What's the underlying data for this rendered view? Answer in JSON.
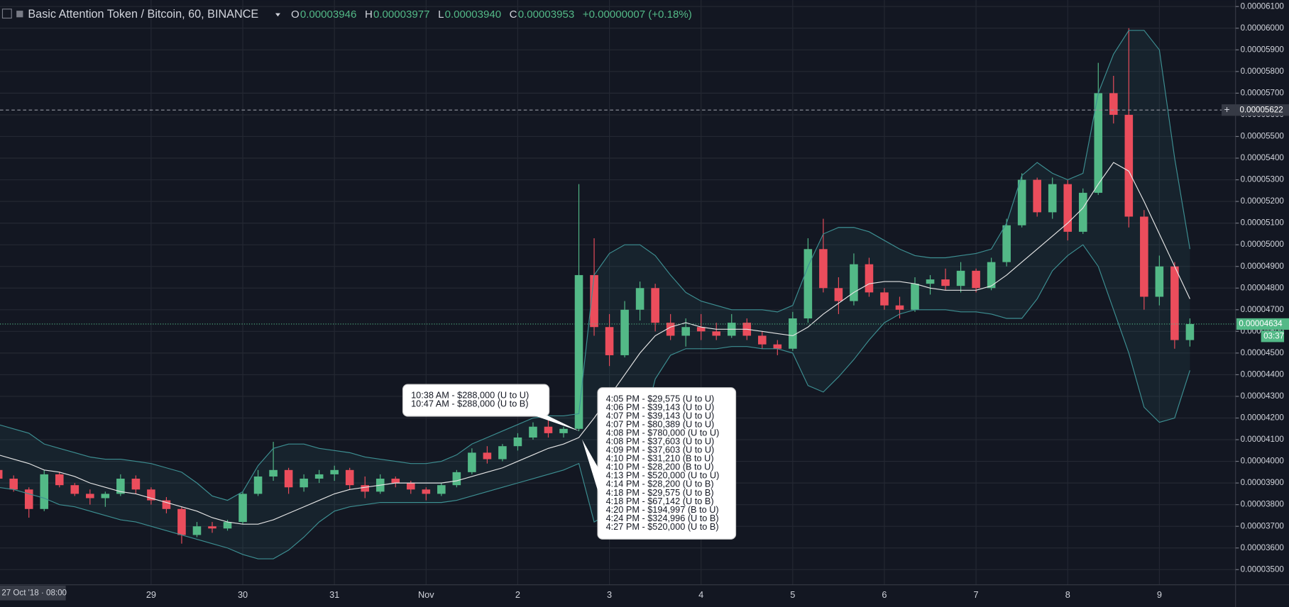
{
  "chart_data": {
    "type": "candlestick",
    "title": "Basic Attention Token / Bitcoin, 60, BINANCE",
    "ohlc_legend": [
      {
        "label": "O",
        "value": "0.00003946"
      },
      {
        "label": "H",
        "value": "0.00003977"
      },
      {
        "label": "L",
        "value": "0.00003940"
      },
      {
        "label": "C",
        "value": "0.00003953"
      }
    ],
    "change": "+0.00000007 (+0.18%)",
    "categories": [
      "27 Oct '18 · 08:00",
      null,
      null,
      null,
      null,
      null,
      null,
      null,
      null,
      null,
      "29",
      null,
      null,
      null,
      null,
      null,
      "30",
      null,
      null,
      null,
      null,
      null,
      "31",
      null,
      null,
      null,
      null,
      null,
      "Nov",
      null,
      null,
      null,
      null,
      null,
      "2",
      null,
      null,
      null,
      null,
      null,
      "3",
      null,
      null,
      null,
      null,
      null,
      "4",
      null,
      null,
      null,
      null,
      null,
      "5",
      null,
      null,
      null,
      null,
      null,
      "6",
      null,
      null,
      null,
      null,
      null,
      "7",
      null,
      null,
      null,
      null,
      null,
      "8",
      null,
      null,
      null,
      null,
      null,
      "9",
      null,
      null
    ],
    "open": [
      3.96e-05,
      3.92e-05,
      3.87e-05,
      3.78e-05,
      3.94e-05,
      3.89e-05,
      3.85e-05,
      3.83e-05,
      3.85e-05,
      3.92e-05,
      3.87e-05,
      3.82e-05,
      3.78e-05,
      3.66e-05,
      3.7e-05,
      3.69e-05,
      3.72e-05,
      3.85e-05,
      3.93e-05,
      3.96e-05,
      3.88e-05,
      3.92e-05,
      3.94e-05,
      3.96e-05,
      3.89e-05,
      3.86e-05,
      3.92e-05,
      3.9e-05,
      3.87e-05,
      3.85e-05,
      3.89e-05,
      3.95e-05,
      4.04e-05,
      4.01e-05,
      4.07e-05,
      4.11e-05,
      4.16e-05,
      4.13e-05,
      4.15e-05,
      4.86e-05,
      4.62e-05,
      4.49e-05,
      4.7e-05,
      4.8e-05,
      4.64e-05,
      4.58e-05,
      4.62e-05,
      4.6e-05,
      4.58e-05,
      4.64e-05,
      4.58e-05,
      4.54e-05,
      4.52e-05,
      4.66e-05,
      4.98e-05,
      4.8e-05,
      4.74e-05,
      4.91e-05,
      4.78e-05,
      4.72e-05,
      4.7e-05,
      4.82e-05,
      4.84e-05,
      4.81e-05,
      4.88e-05,
      4.8e-05,
      4.92e-05,
      5.09e-05,
      5.3e-05,
      5.15e-05,
      5.28e-05,
      5.06e-05,
      5.24e-05,
      5.7e-05,
      5.6e-05,
      5.13e-05,
      4.76e-05,
      4.9e-05,
      4.56e-05
    ],
    "high": [
      3.975e-05,
      3.935e-05,
      3.88e-05,
      3.96e-05,
      3.95e-05,
      3.9e-05,
      3.87e-05,
      3.86e-05,
      3.94e-05,
      3.935e-05,
      3.88e-05,
      3.835e-05,
      3.79e-05,
      3.72e-05,
      3.72e-05,
      3.73e-05,
      3.86e-05,
      3.96e-05,
      4.09e-05,
      3.97e-05,
      3.94e-05,
      3.96e-05,
      3.98e-05,
      3.97e-05,
      3.93e-05,
      3.94e-05,
      3.93e-05,
      3.91e-05,
      3.88e-05,
      3.9e-05,
      3.96e-05,
      4.06e-05,
      4.07e-05,
      4.08e-05,
      4.13e-05,
      4.18e-05,
      4.19e-05,
      4.16e-05,
      5.28e-05,
      5.03e-05,
      4.68e-05,
      4.74e-05,
      4.83e-05,
      4.82e-05,
      4.68e-05,
      4.66e-05,
      4.68e-05,
      4.64e-05,
      4.68e-05,
      4.66e-05,
      4.6e-05,
      4.56e-05,
      4.69e-05,
      5.03e-05,
      5.12e-05,
      4.85e-05,
      4.96e-05,
      4.94e-05,
      4.8e-05,
      4.76e-05,
      4.85e-05,
      4.86e-05,
      4.89e-05,
      4.92e-05,
      4.89e-05,
      4.94e-05,
      5.12e-05,
      5.33e-05,
      5.31e-05,
      5.31e-05,
      5.3e-05,
      5.26e-05,
      5.84e-05,
      5.78e-05,
      6e-05,
      5.16e-05,
      4.95e-05,
      4.92e-05,
      4.66e-05
    ],
    "low": [
      3.9e-05,
      3.86e-05,
      3.74e-05,
      3.77e-05,
      3.88e-05,
      3.84e-05,
      3.8e-05,
      3.79e-05,
      3.84e-05,
      3.85e-05,
      3.8e-05,
      3.76e-05,
      3.62e-05,
      3.65e-05,
      3.67e-05,
      3.68e-05,
      3.71e-05,
      3.84e-05,
      3.91e-05,
      3.85e-05,
      3.86e-05,
      3.9e-05,
      3.91e-05,
      3.87e-05,
      3.83e-05,
      3.85e-05,
      3.88e-05,
      3.85e-05,
      3.82e-05,
      3.84e-05,
      3.88e-05,
      3.94e-05,
      3.99e-05,
      4e-05,
      4.05e-05,
      4.1e-05,
      4.11e-05,
      4.11e-05,
      4.14e-05,
      4.58e-05,
      4.44e-05,
      4.48e-05,
      4.65e-05,
      4.6e-05,
      4.56e-05,
      4.53e-05,
      4.56e-05,
      4.56e-05,
      4.57e-05,
      4.56e-05,
      4.52e-05,
      4.49e-05,
      4.51e-05,
      4.64e-05,
      4.78e-05,
      4.68e-05,
      4.72e-05,
      4.76e-05,
      4.7e-05,
      4.66e-05,
      4.69e-05,
      4.77e-05,
      4.79e-05,
      4.78e-05,
      4.78e-05,
      4.79e-05,
      4.9e-05,
      5.08e-05,
      5.13e-05,
      5.12e-05,
      5.02e-05,
      5.05e-05,
      5.23e-05,
      5.56e-05,
      5.08e-05,
      4.7e-05,
      4.72e-05,
      4.52e-05,
      4.53e-05
    ],
    "close": [
      3.92e-05,
      3.87e-05,
      3.78e-05,
      3.94e-05,
      3.89e-05,
      3.85e-05,
      3.83e-05,
      3.85e-05,
      3.92e-05,
      3.87e-05,
      3.82e-05,
      3.78e-05,
      3.66e-05,
      3.7e-05,
      3.69e-05,
      3.72e-05,
      3.85e-05,
      3.93e-05,
      3.96e-05,
      3.88e-05,
      3.92e-05,
      3.94e-05,
      3.96e-05,
      3.89e-05,
      3.86e-05,
      3.92e-05,
      3.9e-05,
      3.87e-05,
      3.85e-05,
      3.89e-05,
      3.95e-05,
      4.04e-05,
      4.01e-05,
      4.07e-05,
      4.11e-05,
      4.16e-05,
      4.13e-05,
      4.15e-05,
      4.86e-05,
      4.62e-05,
      4.49e-05,
      4.7e-05,
      4.8e-05,
      4.64e-05,
      4.58e-05,
      4.62e-05,
      4.6e-05,
      4.58e-05,
      4.64e-05,
      4.58e-05,
      4.54e-05,
      4.52e-05,
      4.66e-05,
      4.98e-05,
      4.8e-05,
      4.74e-05,
      4.91e-05,
      4.78e-05,
      4.72e-05,
      4.7e-05,
      4.82e-05,
      4.84e-05,
      4.81e-05,
      4.88e-05,
      4.8e-05,
      4.92e-05,
      5.09e-05,
      5.3e-05,
      5.15e-05,
      5.28e-05,
      5.06e-05,
      5.24e-05,
      5.7e-05,
      5.6e-05,
      5.13e-05,
      4.76e-05,
      4.9e-05,
      4.56e-05,
      4.634e-05
    ],
    "up_color": "#53b987",
    "down_color": "#eb4d5c",
    "overlays": [
      {
        "color": "#3d8f92",
        "values": [
          4.17e-05,
          4.15e-05,
          4.13e-05,
          4.08e-05,
          4.06e-05,
          4.04e-05,
          4.02e-05,
          4.01e-05,
          4.01e-05,
          4e-05,
          3.99e-05,
          3.97e-05,
          3.95e-05,
          3.9e-05,
          3.84e-05,
          3.82e-05,
          3.86e-05,
          3.98e-05,
          4.06e-05,
          4.08e-05,
          4.08e-05,
          4.06e-05,
          4.05e-05,
          4.04e-05,
          4.02e-05,
          4.01e-05,
          4e-05,
          3.99e-05,
          3.99e-05,
          4e-05,
          4.03e-05,
          4.08e-05,
          4.11e-05,
          4.14e-05,
          4.17e-05,
          4.2e-05,
          4.21e-05,
          4.21e-05,
          4.22e-05,
          4.86e-05,
          4.96e-05,
          5e-05,
          5e-05,
          4.95e-05,
          4.86e-05,
          4.78e-05,
          4.74e-05,
          4.72e-05,
          4.7e-05,
          4.7e-05,
          4.7e-05,
          4.69e-05,
          4.72e-05,
          4.9e-05,
          5.05e-05,
          5.08e-05,
          5.08e-05,
          5.06e-05,
          5.02e-05,
          4.98e-05,
          4.95e-05,
          4.94e-05,
          4.94e-05,
          4.95e-05,
          4.96e-05,
          4.98e-05,
          5.1e-05,
          5.32e-05,
          5.38e-05,
          5.33e-05,
          5.3e-05,
          5.33e-05,
          5.7e-05,
          5.88e-05,
          5.99e-05,
          5.99e-05,
          5.9e-05,
          5.4e-05,
          4.98e-05
        ]
      },
      {
        "color": "#3d8f92",
        "values": [
          3.88e-05,
          3.87e-05,
          3.85e-05,
          3.83e-05,
          3.8e-05,
          3.79e-05,
          3.77e-05,
          3.75e-05,
          3.73e-05,
          3.72e-05,
          3.7e-05,
          3.68e-05,
          3.66e-05,
          3.64e-05,
          3.62e-05,
          3.6e-05,
          3.57e-05,
          3.55e-05,
          3.55e-05,
          3.59e-05,
          3.65e-05,
          3.72e-05,
          3.77e-05,
          3.79e-05,
          3.8e-05,
          3.81e-05,
          3.81e-05,
          3.81e-05,
          3.81e-05,
          3.81e-05,
          3.82e-05,
          3.84e-05,
          3.86e-05,
          3.88e-05,
          3.9e-05,
          3.92e-05,
          3.94e-05,
          3.96e-05,
          3.99e-05,
          3.72e-05,
          3.76e-05,
          3.88e-05,
          4.1e-05,
          4.38e-05,
          4.49e-05,
          4.52e-05,
          4.52e-05,
          4.52e-05,
          4.53e-05,
          4.53e-05,
          4.52e-05,
          4.52e-05,
          4.5e-05,
          4.35e-05,
          4.32e-05,
          4.39e-05,
          4.47e-05,
          4.56e-05,
          4.64e-05,
          4.68e-05,
          4.7e-05,
          4.7e-05,
          4.7e-05,
          4.69e-05,
          4.69e-05,
          4.68e-05,
          4.66e-05,
          4.66e-05,
          4.75e-05,
          4.88e-05,
          4.95e-05,
          5e-05,
          4.9e-05,
          4.7e-05,
          4.5e-05,
          4.25e-05,
          4.18e-05,
          4.2e-05,
          4.42e-05
        ]
      },
      {
        "color": "#e6e6e6",
        "values": [
          4.03e-05,
          4.01e-05,
          3.99e-05,
          3.96e-05,
          3.95e-05,
          3.93e-05,
          3.9e-05,
          3.88e-05,
          3.86e-05,
          3.85e-05,
          3.83e-05,
          3.81e-05,
          3.79e-05,
          3.77e-05,
          3.74e-05,
          3.72e-05,
          3.71e-05,
          3.71e-05,
          3.73e-05,
          3.76e-05,
          3.79e-05,
          3.82e-05,
          3.85e-05,
          3.87e-05,
          3.88e-05,
          3.89e-05,
          3.9e-05,
          3.9e-05,
          3.9e-05,
          3.9e-05,
          3.91e-05,
          3.93e-05,
          3.95e-05,
          3.97e-05,
          4e-05,
          4.03e-05,
          4.06e-05,
          4.08e-05,
          4.11e-05,
          4.2e-05,
          4.3e-05,
          4.4e-05,
          4.5e-05,
          4.58e-05,
          4.62e-05,
          4.64e-05,
          4.62e-05,
          4.61e-05,
          4.61e-05,
          4.61e-05,
          4.6e-05,
          4.59e-05,
          4.58e-05,
          4.62e-05,
          4.68e-05,
          4.73e-05,
          4.78e-05,
          4.82e-05,
          4.83e-05,
          4.83e-05,
          4.82e-05,
          4.8e-05,
          4.79e-05,
          4.79e-05,
          4.79e-05,
          4.81e-05,
          4.86e-05,
          4.92e-05,
          4.98e-05,
          5.04e-05,
          5.1e-05,
          5.17e-05,
          5.28e-05,
          5.38e-05,
          5.34e-05,
          5.2e-05,
          5.05e-05,
          4.9e-05,
          4.75e-05
        ]
      }
    ],
    "band_fill": "rgba(61,143,146,0.10)",
    "ylim": [
      3.43e-05,
      6.13e-05
    ],
    "yticks": [
      {
        "value": 3.5e-05,
        "label": "0.00003500"
      },
      {
        "value": 3.6e-05,
        "label": "0.00003600"
      },
      {
        "value": 3.7e-05,
        "label": "0.00003700"
      },
      {
        "value": 3.8e-05,
        "label": "0.00003800"
      },
      {
        "value": 3.9e-05,
        "label": "0.00003900"
      },
      {
        "value": 4e-05,
        "label": "0.00004000"
      },
      {
        "value": 4.1e-05,
        "label": "0.00004100"
      },
      {
        "value": 4.2e-05,
        "label": "0.00004200"
      },
      {
        "value": 4.3e-05,
        "label": "0.00004300"
      },
      {
        "value": 4.4e-05,
        "label": "0.00004400"
      },
      {
        "value": 4.5e-05,
        "label": "0.00004500"
      },
      {
        "value": 4.6e-05,
        "label": "0.00004600"
      },
      {
        "value": 4.7e-05,
        "label": "0.00004700"
      },
      {
        "value": 4.8e-05,
        "label": "0.00004800"
      },
      {
        "value": 4.9e-05,
        "label": "0.00004900"
      },
      {
        "value": 5e-05,
        "label": "0.00005000"
      },
      {
        "value": 5.1e-05,
        "label": "0.00005100"
      },
      {
        "value": 5.2e-05,
        "label": "0.00005200"
      },
      {
        "value": 5.3e-05,
        "label": "0.00005300"
      },
      {
        "value": 5.4e-05,
        "label": "0.00005400"
      },
      {
        "value": 5.5e-05,
        "label": "0.00005500"
      },
      {
        "value": 5.6e-05,
        "label": "0.00005600"
      },
      {
        "value": 5.7e-05,
        "label": "0.00005700"
      },
      {
        "value": 5.8e-05,
        "label": "0.00005800"
      },
      {
        "value": 5.9e-05,
        "label": "0.00005900"
      },
      {
        "value": 6e-05,
        "label": "0.00006000"
      },
      {
        "value": 6.1e-05,
        "label": "0.00006100"
      }
    ],
    "grid": true,
    "current_price": 4.634e-05,
    "countdown": "03:37",
    "crosshair_price": 5.622e-05,
    "annotations": [
      {
        "lines": [
          "10:38 AM - $288,000 (U to U)",
          "10:47 AM - $288,000 (U to B)"
        ]
      },
      {
        "lines": [
          "4:05 PM - $29,575 (U to U)",
          "4:06 PM - $39,143 (U to U)",
          "4:07 PM - $39,143 (U to U)",
          "4:07 PM - $80,389 (U to U)",
          "4:08 PM - $780,000 (U to U)",
          "4:08 PM - $37,603 (U to U)",
          "4:09 PM - $37,603 (U  to U)",
          "4:10 PM - $31,210 (B to U)",
          "4:10 PM - $28,200 (B to U)",
          "4:13 PM - $520,000 (U to U)",
          "4:14 PM - $28,200 (U to B)",
          "4:18 PM - $29,575 (U to B)",
          "4:18 PM - $67,142 (U to B)",
          "4:20 PM - $194,997 (B to U)",
          "4:24 PM - $324,996 (U to B)",
          "4:27 PM - $520,000 (U to B)"
        ]
      }
    ]
  }
}
